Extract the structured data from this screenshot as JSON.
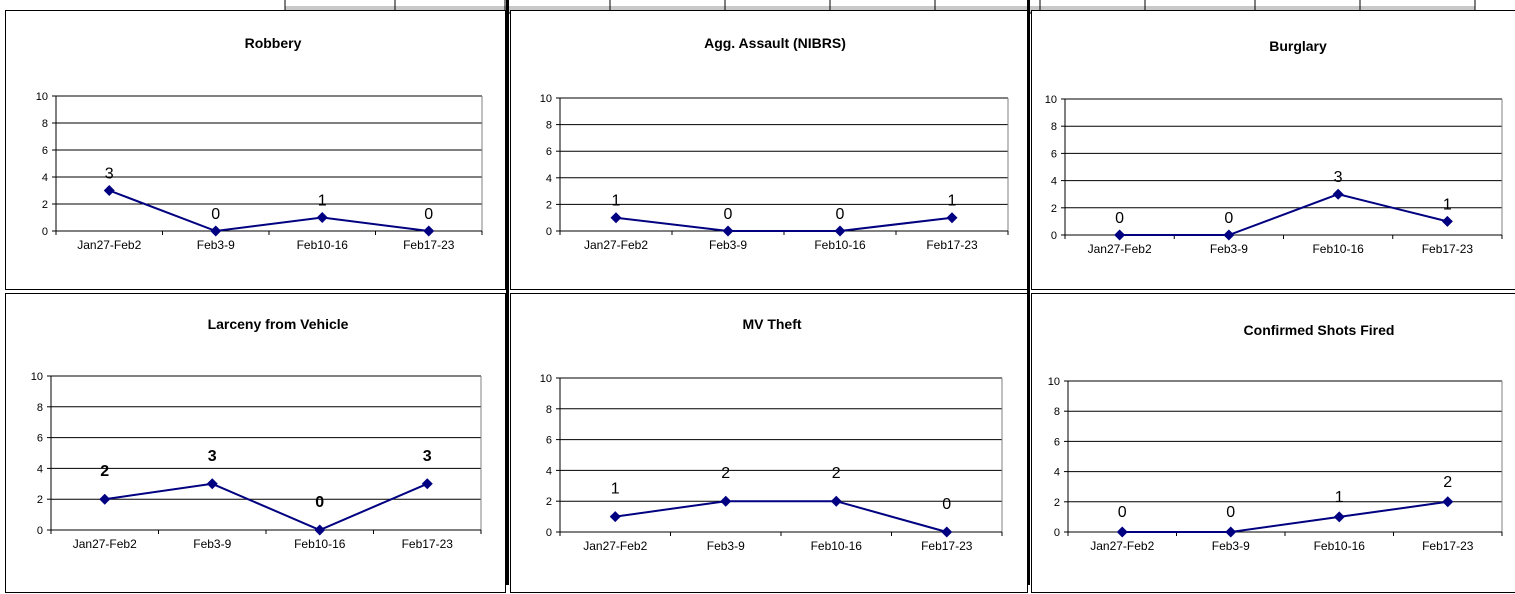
{
  "colors": {
    "line": "#000080",
    "marker": "#000080",
    "axis": "#000000",
    "grid": "#000000"
  },
  "chart_data": [
    {
      "type": "line",
      "title": "Robbery",
      "categories": [
        "Jan27-Feb2",
        "Feb3-9",
        "Feb10-16",
        "Feb17-23"
      ],
      "values": [
        3,
        0,
        1,
        0
      ],
      "ylim": [
        0,
        10
      ],
      "yticks": [
        0,
        2,
        4,
        6,
        8,
        10
      ],
      "grid": true,
      "legend": "none",
      "bold_labels": false
    },
    {
      "type": "line",
      "title": "Agg. Assault (NIBRS)",
      "categories": [
        "Jan27-Feb2",
        "Feb3-9",
        "Feb10-16",
        "Feb17-23"
      ],
      "values": [
        1,
        0,
        0,
        1
      ],
      "ylim": [
        0,
        10
      ],
      "yticks": [
        0,
        2,
        4,
        6,
        8,
        10
      ],
      "grid": true,
      "legend": "none",
      "bold_labels": false
    },
    {
      "type": "line",
      "title": "Burglary",
      "categories": [
        "Jan27-Feb2",
        "Feb3-9",
        "Feb10-16",
        "Feb17-23"
      ],
      "values": [
        0,
        0,
        3,
        1
      ],
      "ylim": [
        0,
        10
      ],
      "yticks": [
        0,
        2,
        4,
        6,
        8,
        10
      ],
      "grid": true,
      "legend": "none",
      "bold_labels": false
    },
    {
      "type": "line",
      "title": "Larceny from Vehicle",
      "categories": [
        "Jan27-Feb2",
        "Feb3-9",
        "Feb10-16",
        "Feb17-23"
      ],
      "values": [
        2,
        3,
        0,
        3
      ],
      "ylim": [
        0,
        10
      ],
      "yticks": [
        0,
        2,
        4,
        6,
        8,
        10
      ],
      "grid": true,
      "legend": "none",
      "bold_labels": true
    },
    {
      "type": "line",
      "title": "MV Theft",
      "categories": [
        "Jan27-Feb2",
        "Feb3-9",
        "Feb10-16",
        "Feb17-23"
      ],
      "values": [
        1,
        2,
        2,
        0
      ],
      "ylim": [
        0,
        10
      ],
      "yticks": [
        0,
        2,
        4,
        6,
        8,
        10
      ],
      "grid": true,
      "legend": "none",
      "bold_labels": false
    },
    {
      "type": "line",
      "title": "Confirmed Shots Fired",
      "categories": [
        "Jan27-Feb2",
        "Feb3-9",
        "Feb10-16",
        "Feb17-23"
      ],
      "values": [
        0,
        0,
        1,
        2
      ],
      "ylim": [
        0,
        10
      ],
      "yticks": [
        0,
        2,
        4,
        6,
        8,
        10
      ],
      "grid": true,
      "legend": "none",
      "bold_labels": false
    }
  ]
}
